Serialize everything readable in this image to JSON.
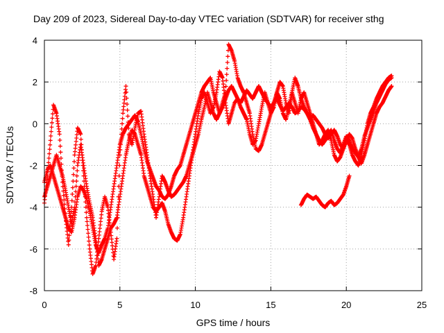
{
  "chart_data": {
    "type": "scatter",
    "title": "Day 209 of 2023, Sidereal Day-to-day VTEC variation (SDTVAR) for receiver sthg",
    "xlabel": "GPS time / hours",
    "ylabel": "SDTVAR / TECUs",
    "xlim": [
      0,
      25
    ],
    "ylim": [
      -8,
      4
    ],
    "xticks": [
      0,
      5,
      10,
      15,
      20,
      25
    ],
    "yticks": [
      -8,
      -6,
      -4,
      -2,
      0,
      2,
      4
    ],
    "grid": true,
    "marker": "+",
    "series": [
      {
        "name": "trace-1",
        "color": "#ff0000",
        "x": [
          0.0,
          0.2,
          0.4,
          0.6,
          0.8,
          1.0,
          1.2,
          1.4,
          1.6,
          1.8,
          2.0,
          2.2,
          2.4,
          2.6,
          2.8,
          3.0,
          3.2,
          3.4,
          3.6,
          3.8,
          4.0,
          4.2,
          4.4,
          4.6,
          4.8,
          5.0,
          5.2,
          5.4,
          5.6,
          5.8,
          6.0,
          6.2,
          6.4,
          6.6,
          6.8,
          7.0,
          7.2,
          7.4,
          7.6,
          7.8,
          8.0,
          8.2,
          8.4,
          8.6,
          8.8,
          9.0,
          9.2,
          9.4,
          9.6,
          9.8,
          10.0,
          10.2,
          10.4,
          10.6,
          10.8,
          11.0,
          11.2,
          11.4,
          11.6,
          11.8,
          12.0,
          12.2,
          12.4,
          12.6,
          12.8,
          13.0,
          13.2,
          13.4,
          13.6,
          13.8,
          14.0,
          14.2,
          14.4,
          14.6,
          14.8,
          15.0,
          15.2,
          15.4,
          15.6,
          15.8,
          16.0,
          16.2,
          16.4,
          16.6,
          16.8,
          17.0,
          17.2,
          17.4,
          17.6,
          17.8,
          18.0,
          18.2,
          18.4,
          18.6,
          18.8,
          19.0,
          19.2,
          19.4,
          19.6,
          19.8,
          20.0,
          20.2,
          20.4,
          20.6,
          20.8,
          21.0,
          21.2,
          21.4,
          21.6,
          21.8,
          22.0,
          22.2,
          22.4,
          22.6,
          22.8,
          23.0
        ],
        "y": [
          -3.8,
          -2.5,
          -0.8,
          0.9,
          0.5,
          -0.5,
          -2.8,
          -4.5,
          -5.8,
          -4.0,
          -1.5,
          -0.2,
          -0.5,
          -2.5,
          -4.5,
          -6.0,
          -7.2,
          -6.8,
          -5.5,
          -4.2,
          -3.5,
          -4.0,
          -5.2,
          -6.5,
          -5.5,
          -1.5,
          0.5,
          1.8,
          -0.5,
          -1.0,
          -0.2,
          0.5,
          0.6,
          -0.5,
          -1.5,
          -2.5,
          -3.5,
          -4.5,
          -3.5,
          -2.5,
          -2.8,
          -3.2,
          -3.5,
          -3.4,
          -3.2,
          -3.0,
          -2.8,
          -2.5,
          -2.0,
          -1.5,
          -0.5,
          0.5,
          1.2,
          1.5,
          1.0,
          0.5,
          0.8,
          1.5,
          2.5,
          2.2,
          1.0,
          0.0,
          0.5,
          1.0,
          1.2,
          0.8,
          0.5,
          0.2,
          -0.5,
          -1.0,
          -0.8,
          0.0,
          0.8,
          1.5,
          1.0,
          0.5,
          0.8,
          1.5,
          1.2,
          0.5,
          0.2,
          0.8,
          1.5,
          1.0,
          0.5,
          1.2,
          1.5,
          1.0,
          0.5,
          0.0,
          -0.5,
          -1.0,
          -0.8,
          -0.5,
          -0.3,
          -0.8,
          -1.5,
          -1.8,
          -1.6,
          -1.2,
          -0.8,
          -1.0,
          -1.5,
          -1.8,
          -2.0,
          -1.5,
          -0.8,
          0.0,
          0.5,
          0.8,
          1.2,
          1.5,
          1.8,
          2.0,
          2.2,
          2.3
        ]
      },
      {
        "name": "trace-2",
        "color": "#ff0000",
        "x": [
          0.0,
          0.2,
          0.4,
          0.6,
          0.8,
          1.0,
          1.2,
          1.4,
          1.6,
          1.8,
          2.0,
          2.2,
          2.4,
          2.6,
          2.8,
          3.0,
          3.2,
          3.4,
          3.6,
          3.8,
          4.0,
          4.2,
          4.4,
          4.6,
          4.8,
          5.0,
          5.2,
          5.4,
          5.6,
          5.8,
          6.0,
          6.2,
          6.4,
          6.6,
          6.8,
          7.0,
          7.2,
          7.4,
          7.6,
          7.8,
          8.0,
          8.2,
          8.4,
          8.6,
          8.8,
          9.0,
          9.2,
          9.4,
          9.6,
          9.8,
          10.0,
          10.2,
          10.4,
          10.6,
          10.8,
          11.0,
          11.2,
          11.4,
          11.6,
          11.8,
          12.0,
          12.2,
          12.4,
          12.6,
          12.8,
          13.0,
          13.2,
          13.4,
          13.6,
          13.8,
          14.0,
          14.2,
          14.4,
          14.6,
          14.8,
          15.0,
          15.2,
          15.4,
          15.6,
          15.8,
          16.0,
          16.2,
          16.4,
          16.6,
          16.8,
          17.0,
          17.2,
          17.4,
          17.6,
          17.8,
          18.0,
          18.2,
          18.4,
          18.6,
          18.8,
          19.0,
          19.2,
          19.4,
          19.6,
          19.8,
          20.0,
          20.2,
          20.4,
          20.6,
          20.8,
          21.0,
          21.2,
          21.4,
          21.6,
          21.8,
          22.0,
          22.2,
          22.4,
          22.6,
          22.8,
          23.0
        ],
        "y": [
          -2.8,
          -2.2,
          -2.0,
          -2.5,
          -3.0,
          -3.5,
          -4.0,
          -4.5,
          -5.0,
          -5.2,
          -4.5,
          -3.5,
          -3.0,
          -3.2,
          -3.6,
          -4.2,
          -5.0,
          -5.8,
          -6.2,
          -5.8,
          -5.5,
          -5.0,
          -4.0,
          -3.0,
          -2.0,
          -1.0,
          -0.5,
          -0.2,
          0.0,
          0.2,
          0.4,
          0.1,
          -0.5,
          -1.2,
          -1.8,
          -2.2,
          -2.6,
          -3.0,
          -3.2,
          -3.5,
          -3.6,
          -3.4,
          -3.0,
          -2.5,
          -2.2,
          -2.0,
          -1.5,
          -1.0,
          -0.5,
          0.0,
          0.5,
          1.0,
          1.5,
          1.8,
          2.0,
          2.2,
          1.5,
          1.0,
          0.5,
          0.8,
          1.2,
          1.6,
          1.8,
          1.5,
          1.2,
          1.0,
          1.3,
          1.6,
          1.4,
          1.2,
          1.5,
          1.8,
          1.5,
          1.2,
          1.0,
          0.8,
          1.0,
          1.2,
          0.9,
          0.6,
          0.8,
          1.0,
          0.8,
          0.5,
          0.6,
          0.8,
          0.7,
          0.5,
          0.3,
          0.4,
          0.2,
          0.0,
          -0.2,
          -0.5,
          -0.7,
          -0.5,
          -0.3,
          -0.6,
          -1.0,
          -1.2,
          -0.8,
          -0.5,
          -0.7,
          -1.2,
          -1.6,
          -1.9,
          -1.5,
          -1.0,
          -0.5,
          0.0,
          0.5,
          0.8,
          1.0,
          1.3,
          1.6,
          1.8
        ]
      },
      {
        "name": "trace-3",
        "color": "#ff0000",
        "x": [
          0.0,
          0.2,
          0.4,
          0.6,
          0.8,
          1.0,
          1.2,
          1.4,
          1.6,
          1.8,
          2.0,
          2.2,
          2.4,
          2.6,
          2.8,
          3.0,
          3.2,
          3.4,
          3.6,
          3.8,
          4.0,
          4.2,
          4.4,
          4.6,
          4.8,
          5.0,
          5.2,
          5.4,
          5.6,
          5.8,
          6.0,
          6.2,
          6.4,
          6.6,
          6.8,
          7.0,
          7.2,
          7.4,
          7.6,
          7.8,
          8.0,
          8.2,
          8.4,
          8.6,
          8.8,
          9.0,
          9.2,
          9.4,
          9.6,
          9.8,
          10.0,
          10.2,
          10.4,
          10.6,
          10.8,
          11.0,
          11.2,
          11.4,
          11.6,
          11.8,
          12.0,
          12.2,
          12.4,
          12.6,
          12.8,
          13.0,
          13.2,
          13.4,
          13.6,
          13.8,
          14.0,
          14.2,
          14.4,
          14.6,
          14.8,
          15.0,
          15.2,
          15.4,
          15.6,
          15.8,
          16.0,
          16.2,
          16.4,
          16.6,
          16.8,
          17.0,
          17.2,
          17.4,
          17.6,
          17.8,
          18.0,
          18.2,
          18.4,
          18.6,
          18.8,
          19.0,
          19.2,
          19.4,
          19.6,
          19.8,
          20.0,
          20.2,
          20.4,
          20.6,
          20.8,
          21.0,
          21.2,
          21.4,
          21.6,
          21.8,
          22.0,
          22.2,
          22.4,
          22.6,
          22.8,
          23.0
        ],
        "y": [
          -3.5,
          -3.0,
          -2.5,
          -2.0,
          -1.5,
          -2.0,
          -2.5,
          -3.2,
          -4.0,
          -4.8,
          -4.0,
          -2.0,
          -1.0,
          -2.0,
          -3.0,
          -3.8,
          -4.5,
          -5.5,
          -6.8,
          -6.5,
          -6.0,
          -5.5,
          -5.0,
          -4.8,
          -4.5,
          -3.5,
          -2.5,
          -1.5,
          -0.8,
          -0.3,
          -0.5,
          -1.0,
          -1.5,
          -2.5,
          -3.0,
          -3.5,
          -4.0,
          -4.2,
          -4.0,
          -3.8,
          -4.2,
          -4.8,
          -5.2,
          -5.5,
          -5.6,
          -5.3,
          -4.5,
          -3.5,
          -2.5,
          -1.5,
          -1.0,
          -0.5,
          0.2,
          0.8,
          1.5,
          1.0,
          0.5,
          0.2,
          0.5,
          1.0,
          1.5,
          3.8,
          3.5,
          3.0,
          2.2,
          1.8,
          1.5,
          1.0,
          0.5,
          -0.5,
          -1.2,
          -1.3,
          -1.0,
          -0.5,
          0.0,
          0.5,
          1.0,
          1.5,
          2.0,
          1.8,
          1.0,
          0.5,
          1.5,
          2.2,
          1.8,
          1.2,
          0.8,
          0.5,
          0.2,
          -0.2,
          -0.5,
          -0.8,
          -1.0,
          -0.8,
          -0.5,
          -0.3,
          -0.8,
          -1.2,
          -1.4,
          -1.0,
          -0.6,
          -0.8,
          -1.2,
          -1.4,
          -1.6,
          -1.2,
          -0.6,
          -0.2,
          0.2,
          0.6,
          1.0,
          1.3,
          1.6,
          1.9,
          2.1,
          2.2
        ]
      },
      {
        "name": "trace-4",
        "color": "#ff0000",
        "x": [
          17.0,
          17.2,
          17.4,
          17.6,
          17.8,
          18.0,
          18.2,
          18.4,
          18.6,
          18.8,
          19.0,
          19.2,
          19.4,
          19.6,
          19.8,
          20.0,
          20.2
        ],
        "y": [
          -3.9,
          -3.6,
          -3.4,
          -3.5,
          -3.6,
          -3.5,
          -3.7,
          -3.9,
          -4.0,
          -3.8,
          -3.7,
          -3.9,
          -3.8,
          -3.6,
          -3.4,
          -3.0,
          -2.5
        ]
      }
    ]
  }
}
